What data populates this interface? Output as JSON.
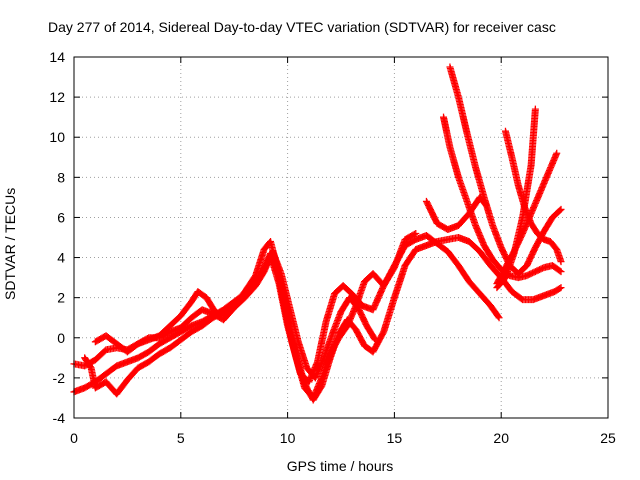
{
  "chart_data": {
    "type": "scatter",
    "title": "Day 277 of 2014, Sidereal Day-to-day VTEC variation (SDTVAR) for receiver casc",
    "xlabel": "GPS time / hours",
    "ylabel": "SDTVAR / TECUs",
    "xlim": [
      0,
      25
    ],
    "ylim": [
      -4,
      14
    ],
    "xticks": [
      0,
      5,
      10,
      15,
      20,
      25
    ],
    "yticks": [
      -4,
      -2,
      0,
      2,
      4,
      6,
      8,
      10,
      12,
      14
    ],
    "grid": true,
    "marker": "plus",
    "color": "#ff0000",
    "series": [
      {
        "x": [
          0.0,
          0.5,
          1.0,
          1.5,
          2.0,
          2.5,
          3.0,
          3.5,
          4.0,
          4.5,
          5.0,
          5.5,
          5.8,
          6.2,
          6.6,
          7.0,
          7.5,
          8.0,
          8.5,
          8.9,
          9.2,
          9.5,
          9.8,
          10.2,
          10.6,
          11.0,
          11.4,
          11.8,
          12.2,
          12.6,
          13.0,
          13.5,
          14.0,
          14.5,
          15.0,
          15.5,
          16.0,
          16.5,
          17.0,
          17.5,
          18.0,
          18.5,
          19.0,
          19.5,
          19.9
        ],
        "y": [
          -1.3,
          -1.4,
          -1.1,
          -0.6,
          -0.5,
          -0.6,
          -0.3,
          -0.1,
          0.1,
          0.6,
          1.1,
          1.8,
          2.3,
          2.0,
          1.3,
          1.1,
          1.6,
          2.3,
          3.1,
          4.4,
          4.8,
          3.6,
          1.8,
          -0.2,
          -1.8,
          -2.2,
          -1.2,
          0.8,
          2.2,
          2.6,
          2.2,
          1.6,
          1.4,
          2.6,
          3.6,
          4.6,
          4.9,
          5.1,
          4.7,
          4.3,
          3.6,
          2.8,
          2.2,
          1.6,
          1.0
        ]
      },
      {
        "x": [
          0.0,
          0.5,
          1.0,
          1.5,
          2.0,
          2.5,
          3.0,
          3.5,
          4.0,
          4.5,
          5.0,
          5.5,
          6.0,
          6.5,
          7.0,
          7.5,
          8.0,
          8.5,
          8.9,
          9.2,
          9.6,
          10.0,
          10.4,
          10.8,
          11.2,
          11.6,
          12.0,
          12.4,
          12.8,
          13.2,
          13.6,
          14.0,
          14.5,
          15.0,
          15.5,
          16.0,
          16.5,
          17.0,
          17.5,
          18.0,
          18.5,
          19.0,
          19.5,
          20.0,
          20.5,
          21.0,
          21.5,
          22.0,
          22.5,
          22.8
        ],
        "y": [
          -2.7,
          -2.5,
          -2.2,
          -1.8,
          -1.4,
          -1.2,
          -1.0,
          -0.7,
          -0.3,
          0.0,
          0.3,
          0.6,
          0.8,
          1.1,
          1.4,
          1.8,
          2.2,
          2.7,
          3.5,
          4.2,
          3.0,
          1.0,
          -0.8,
          -2.3,
          -3.1,
          -2.4,
          -1.0,
          0.2,
          0.9,
          0.4,
          -0.4,
          -0.7,
          0.3,
          2.0,
          3.6,
          4.4,
          4.6,
          4.8,
          4.9,
          5.0,
          4.8,
          4.3,
          3.6,
          3.0,
          2.3,
          1.9,
          1.9,
          2.1,
          2.3,
          2.5
        ]
      },
      {
        "x": [
          0.5,
          0.8,
          1.0,
          1.5,
          2.0,
          2.5,
          3.0,
          3.5,
          4.0,
          4.5,
          5.0,
          5.5,
          6.0,
          6.5,
          7.0,
          7.5,
          8.0,
          8.5,
          8.9,
          9.2,
          9.6,
          10.0,
          10.4,
          10.8,
          11.2,
          11.6,
          12.0,
          12.4,
          12.8,
          13.2,
          13.6,
          14.0,
          14.5,
          15.0,
          15.5,
          16.0
        ],
        "y": [
          -1.0,
          -1.5,
          -2.5,
          -2.2,
          -2.8,
          -2.1,
          -1.5,
          -1.2,
          -0.8,
          -0.5,
          -0.1,
          0.3,
          0.6,
          1.0,
          1.3,
          1.7,
          2.1,
          2.6,
          3.3,
          4.1,
          2.7,
          0.6,
          -1.0,
          -2.5,
          -3.0,
          -2.0,
          -0.8,
          0.0,
          0.6,
          1.6,
          2.8,
          3.2,
          2.6,
          3.5,
          4.9,
          5.2
        ]
      },
      {
        "x": [
          1.0,
          1.5,
          2.0,
          2.5,
          3.0,
          3.5,
          4.0,
          4.5,
          5.0,
          5.5,
          6.0,
          6.5,
          7.0,
          7.5,
          8.0,
          8.5,
          9.0,
          9.3,
          9.7,
          10.1,
          10.5,
          10.9,
          11.3,
          11.7,
          12.1,
          12.5,
          12.9,
          13.3,
          13.7,
          14.1
        ],
        "y": [
          -0.2,
          0.1,
          -0.3,
          -0.7,
          -0.3,
          0.0,
          0.0,
          0.3,
          0.5,
          1.0,
          1.4,
          1.2,
          0.9,
          1.5,
          2.0,
          2.6,
          3.6,
          4.3,
          3.2,
          1.5,
          -0.2,
          -1.5,
          -2.0,
          -1.0,
          0.2,
          1.3,
          2.0,
          1.5,
          0.6,
          -0.1
        ]
      },
      {
        "x": [
          17.3,
          17.6,
          18.0,
          18.4,
          18.8,
          19.2,
          19.6,
          20.0,
          20.4,
          20.8,
          21.2,
          21.6,
          22.0,
          22.4,
          22.8
        ],
        "y": [
          11.0,
          9.5,
          8.0,
          6.8,
          5.6,
          4.6,
          3.9,
          3.4,
          3.1,
          3.0,
          3.1,
          3.3,
          3.5,
          3.6,
          3.3
        ]
      },
      {
        "x": [
          17.6,
          18.0,
          18.4,
          18.8,
          19.2,
          19.6,
          20.0,
          20.4,
          20.8,
          21.2,
          21.6,
          22.0,
          22.4,
          22.8
        ],
        "y": [
          13.5,
          12.0,
          10.2,
          8.5,
          7.0,
          5.6,
          4.5,
          3.6,
          3.2,
          3.6,
          4.5,
          5.3,
          6.0,
          6.4
        ]
      },
      {
        "x": [
          20.2,
          20.5,
          20.8,
          21.1,
          21.4,
          21.7,
          22.0,
          22.3,
          22.6,
          22.8
        ],
        "y": [
          10.3,
          9.0,
          7.6,
          6.5,
          5.7,
          5.2,
          4.9,
          4.8,
          4.4,
          3.8
        ]
      },
      {
        "x": [
          19.8,
          20.2,
          20.6,
          21.0,
          21.4,
          21.8,
          22.2,
          22.6
        ],
        "y": [
          2.7,
          3.5,
          4.3,
          5.2,
          6.2,
          7.2,
          8.2,
          9.2
        ]
      },
      {
        "x": [
          19.8,
          20.2,
          20.6,
          21.0,
          21.4,
          21.6
        ],
        "y": [
          2.5,
          3.0,
          4.2,
          6.0,
          8.6,
          11.4
        ]
      },
      {
        "x": [
          16.5,
          17.0,
          17.5,
          18.0,
          18.5,
          19.0,
          19.3
        ],
        "y": [
          6.8,
          5.7,
          5.4,
          5.6,
          6.2,
          7.0,
          6.6
        ]
      }
    ]
  }
}
